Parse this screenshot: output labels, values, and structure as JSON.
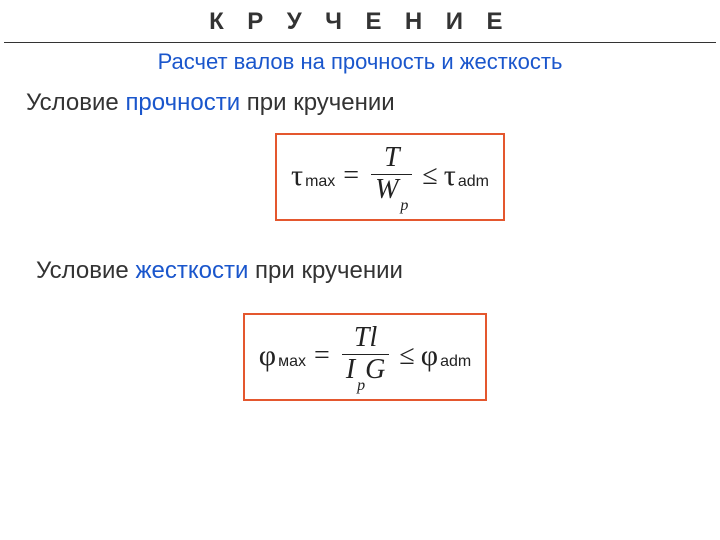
{
  "title": "К Р У Ч Е Н И Е",
  "subtitle": "Расчет валов на прочность и жесткость",
  "section1": {
    "prefix": "Условие ",
    "accent": "прочности",
    "suffix": " при кручении"
  },
  "section2": {
    "prefix": "Условие ",
    "accent": "жесткости",
    "suffix": " при кручении"
  },
  "formula1": {
    "lhs_symbol": "τ",
    "lhs_sub": "max",
    "frac_num": "T",
    "frac_den_sym": "W",
    "frac_den_sub": "p",
    "rhs_symbol": "τ",
    "rhs_sub": "adm"
  },
  "formula2": {
    "lhs_symbol": "φ",
    "lhs_sub": "мах",
    "frac_num": "Tl",
    "frac_den_sym1": "I",
    "frac_den_sub1": "p",
    "frac_den_sym2": "G",
    "rhs_symbol": "φ",
    "rhs_sub": "adm"
  },
  "colors": {
    "accent_blue": "#1a56cc",
    "box_border": "#e4572e",
    "text": "#333333",
    "background": "#ffffff"
  }
}
